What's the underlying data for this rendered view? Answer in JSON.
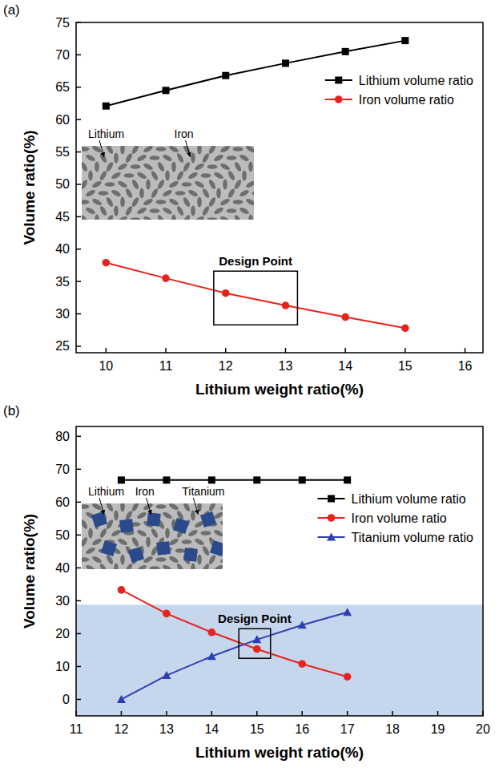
{
  "chart_data": [
    {
      "panel": "(a)",
      "type": "line",
      "x_label": "Lithium weight ratio(%)",
      "y_label": "Volume ratio(%)",
      "x": [
        10,
        11,
        12,
        13,
        14,
        15
      ],
      "series": [
        {
          "name": "Lithium volume ratio",
          "color": "#000000",
          "marker": "square",
          "values": [
            62.1,
            64.5,
            66.8,
            68.7,
            70.5,
            72.2
          ]
        },
        {
          "name": "Iron volume ratio",
          "color": "#e8231c",
          "marker": "circle",
          "values": [
            37.9,
            35.5,
            33.2,
            31.3,
            29.5,
            27.8
          ]
        }
      ],
      "xlim": [
        9.5,
        16.3
      ],
      "xticks": [
        10,
        11,
        12,
        13,
        14,
        15,
        16
      ],
      "ylim": [
        24,
        75
      ],
      "yticks": [
        25,
        30,
        35,
        40,
        45,
        50,
        55,
        60,
        65,
        70,
        75
      ],
      "legend": "upper right",
      "annotations": [
        {
          "text": "Design Point",
          "x": [
            11.8,
            13.2
          ],
          "y": [
            28.3,
            36.6
          ]
        }
      ],
      "inset": {
        "labels": [
          "Lithium",
          "Iron"
        ]
      }
    },
    {
      "panel": "(b)",
      "type": "line",
      "x_label": "Lithium weight ratio(%)",
      "y_label": "Volume ratio(%)",
      "x": [
        12,
        13,
        14,
        15,
        16,
        17
      ],
      "series": [
        {
          "name": "Lithium volume ratio",
          "color": "#000000",
          "marker": "square",
          "values": [
            66.7,
            66.7,
            66.7,
            66.7,
            66.7,
            66.7
          ]
        },
        {
          "name": "Iron volume ratio",
          "color": "#e8231c",
          "marker": "circle",
          "values": [
            33.3,
            26.1,
            20.4,
            15.3,
            10.8,
            6.9
          ]
        },
        {
          "name": "Titanium volume ratio",
          "color": "#2d3fb5",
          "marker": "triangle",
          "values": [
            0,
            7.3,
            13.1,
            18.2,
            22.6,
            26.5
          ]
        }
      ],
      "xlim": [
        11,
        20
      ],
      "xticks": [
        11,
        12,
        13,
        14,
        15,
        16,
        17,
        18,
        19,
        20
      ],
      "ylim": [
        -5,
        83
      ],
      "yticks": [
        0,
        10,
        20,
        30,
        40,
        50,
        60,
        70,
        80
      ],
      "legend": "upper right",
      "shaded_region": {
        "y": [
          -5,
          28.8
        ],
        "color": "#c6d6ec"
      },
      "annotations": [
        {
          "text": "Design Point",
          "x": [
            14.6,
            15.3
          ],
          "y": [
            12.5,
            21.5
          ]
        }
      ],
      "inset": {
        "labels": [
          "Lithium",
          "Iron",
          "Titanium"
        ]
      }
    }
  ]
}
